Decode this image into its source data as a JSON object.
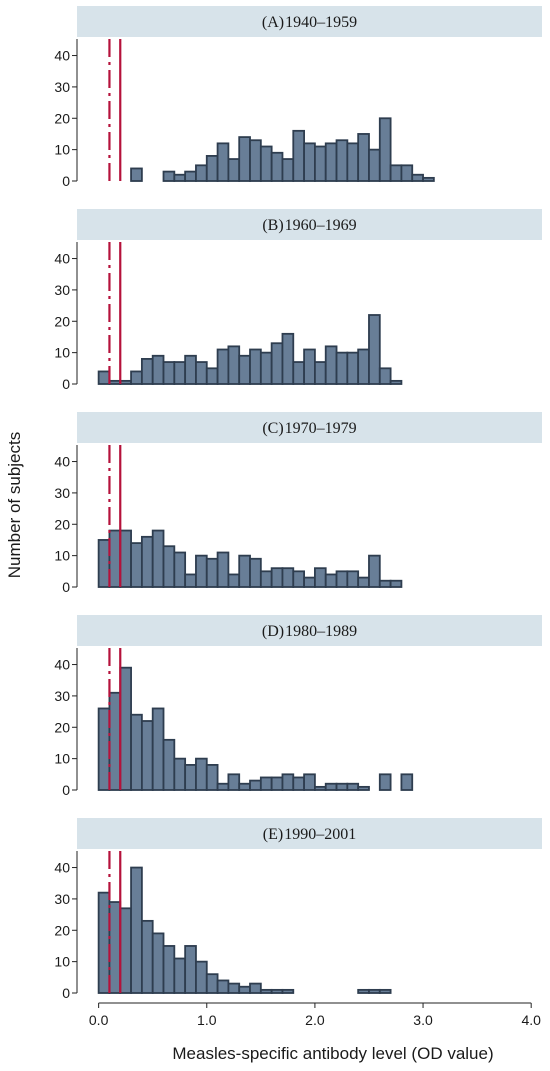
{
  "colors": {
    "bar_fill": "#687e97",
    "bar_stroke": "#2e3d4f",
    "strip": "#d7e3ea",
    "axis": "#222222",
    "cutoff_line": "#b5123b"
  },
  "chart_data": {
    "type": "bar",
    "chart_kind": "faceted histogram",
    "xlabel": "Measles-specific antibody level (OD value)",
    "ylabel": "Number of subjects",
    "xlim": [
      -0.2,
      4.1
    ],
    "ylim": [
      0,
      44
    ],
    "x_ticks": [
      "0.0",
      "1.0",
      "2.0",
      "3.0",
      "4.0"
    ],
    "x_tick_values": [
      0,
      1,
      2,
      3,
      4
    ],
    "y_ticks": [
      "0",
      "10",
      "20",
      "30",
      "40"
    ],
    "y_tick_values": [
      0,
      10,
      20,
      30,
      40
    ],
    "bin_width": 0.1,
    "bin_start": 0,
    "reference_lines": [
      {
        "x": 0.1,
        "style": "dashed"
      },
      {
        "x": 0.2,
        "style": "solid"
      }
    ],
    "panels": [
      {
        "label": "(A)",
        "title": "1940–1959",
        "values": [
          0,
          0,
          0,
          4,
          0,
          0,
          3,
          2,
          3,
          5,
          8,
          12,
          7,
          14,
          13,
          11,
          9,
          7,
          16,
          12,
          11,
          12,
          13,
          12,
          15,
          10,
          20,
          5,
          5,
          2,
          1,
          0,
          0,
          0,
          0,
          0,
          0,
          0,
          0,
          0
        ]
      },
      {
        "label": "(B)",
        "title": "1960–1969",
        "values": [
          4,
          1,
          1,
          4,
          8,
          9,
          7,
          7,
          9,
          7,
          5,
          11,
          12,
          9,
          11,
          10,
          13,
          16,
          7,
          11,
          7,
          12,
          10,
          10,
          11,
          22,
          5,
          1,
          0,
          0,
          0,
          0,
          0,
          0,
          0,
          0,
          0,
          0,
          0,
          0
        ]
      },
      {
        "label": "(C)",
        "title": "1970–1979",
        "values": [
          15,
          18,
          18,
          14,
          16,
          18,
          13,
          11,
          4,
          10,
          9,
          11,
          4,
          10,
          9,
          5,
          6,
          6,
          5,
          3,
          6,
          4,
          5,
          5,
          3,
          10,
          2,
          2,
          0,
          0,
          0,
          0,
          0,
          0,
          0,
          0,
          0,
          0,
          0,
          0
        ]
      },
      {
        "label": "(D)",
        "title": "1980–1989",
        "values": [
          26,
          31,
          39,
          24,
          22,
          26,
          16,
          10,
          8,
          10,
          8,
          2,
          5,
          2,
          3,
          4,
          4,
          5,
          4,
          5,
          1,
          2,
          2,
          2,
          1,
          0,
          5,
          0,
          5,
          0,
          0,
          0,
          0,
          0,
          0,
          0,
          0,
          0,
          0,
          0
        ]
      },
      {
        "label": "(E)",
        "title": "1990–2001",
        "values": [
          32,
          29,
          27,
          40,
          23,
          19,
          15,
          11,
          15,
          10,
          6,
          4,
          3,
          2,
          3,
          1,
          1,
          1,
          0,
          0,
          0,
          0,
          0,
          0,
          1,
          1,
          1,
          0,
          0,
          0,
          0,
          0,
          0,
          0,
          0,
          0,
          0,
          0,
          0,
          0
        ]
      }
    ]
  }
}
